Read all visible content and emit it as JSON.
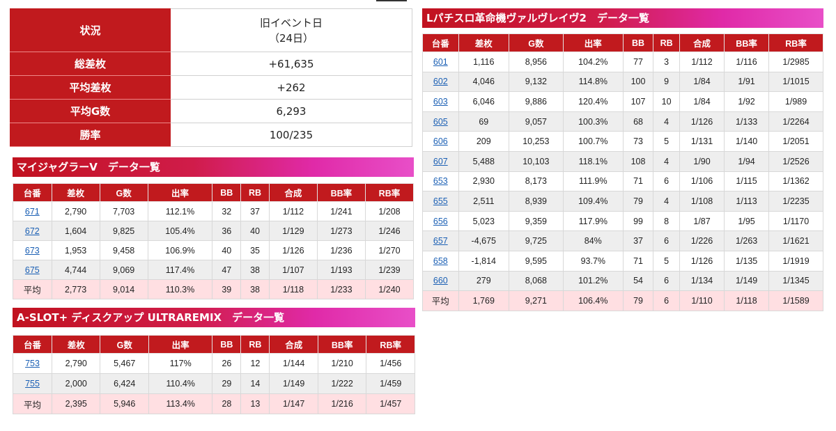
{
  "summary": {
    "rows": [
      {
        "label": "状況",
        "value_lines": [
          "旧イベント日",
          "（24日）"
        ]
      },
      {
        "label": "総差枚",
        "value_lines": [
          "+61,635"
        ]
      },
      {
        "label": "平均差枚",
        "value_lines": [
          "+262"
        ]
      },
      {
        "label": "平均G数",
        "value_lines": [
          "6,293"
        ]
      },
      {
        "label": "勝率",
        "value_lines": [
          "100/235"
        ]
      }
    ]
  },
  "columns": [
    "台番",
    "差枚",
    "G数",
    "出率",
    "BB",
    "RB",
    "合成",
    "BB率",
    "RB率"
  ],
  "sections": {
    "myjuggler": {
      "title": "マイジャグラーV　データ一覧",
      "rows": [
        [
          "671",
          "2,790",
          "7,703",
          "112.1%",
          "32",
          "37",
          "1/112",
          "1/241",
          "1/208"
        ],
        [
          "672",
          "1,604",
          "9,825",
          "105.4%",
          "36",
          "40",
          "1/129",
          "1/273",
          "1/246"
        ],
        [
          "673",
          "1,953",
          "9,458",
          "106.9%",
          "40",
          "35",
          "1/126",
          "1/236",
          "1/270"
        ],
        [
          "675",
          "4,744",
          "9,069",
          "117.4%",
          "47",
          "38",
          "1/107",
          "1/193",
          "1/239"
        ]
      ],
      "avg": [
        "平均",
        "2,773",
        "9,014",
        "110.3%",
        "39",
        "38",
        "1/118",
        "1/233",
        "1/240"
      ]
    },
    "discup": {
      "title": "A-SLOT+ ディスクアップ ULTRAREMIX　データ一覧",
      "rows": [
        [
          "753",
          "2,790",
          "5,467",
          "117%",
          "26",
          "12",
          "1/144",
          "1/210",
          "1/456"
        ],
        [
          "755",
          "2,000",
          "6,424",
          "110.4%",
          "29",
          "14",
          "1/149",
          "1/222",
          "1/459"
        ]
      ],
      "avg": [
        "平均",
        "2,395",
        "5,946",
        "113.4%",
        "28",
        "13",
        "1/147",
        "1/216",
        "1/457"
      ]
    },
    "valvrave": {
      "title": "Lパチスロ革命機ヴァルヴレイヴ2　データ一覧",
      "rows": [
        [
          "601",
          "1,116",
          "8,956",
          "104.2%",
          "77",
          "3",
          "1/112",
          "1/116",
          "1/2985"
        ],
        [
          "602",
          "4,046",
          "9,132",
          "114.8%",
          "100",
          "9",
          "1/84",
          "1/91",
          "1/1015"
        ],
        [
          "603",
          "6,046",
          "9,886",
          "120.4%",
          "107",
          "10",
          "1/84",
          "1/92",
          "1/989"
        ],
        [
          "605",
          "69",
          "9,057",
          "100.3%",
          "68",
          "4",
          "1/126",
          "1/133",
          "1/2264"
        ],
        [
          "606",
          "209",
          "10,253",
          "100.7%",
          "73",
          "5",
          "1/131",
          "1/140",
          "1/2051"
        ],
        [
          "607",
          "5,488",
          "10,103",
          "118.1%",
          "108",
          "4",
          "1/90",
          "1/94",
          "1/2526"
        ],
        [
          "653",
          "2,930",
          "8,173",
          "111.9%",
          "71",
          "6",
          "1/106",
          "1/115",
          "1/1362"
        ],
        [
          "655",
          "2,511",
          "8,939",
          "109.4%",
          "79",
          "4",
          "1/108",
          "1/113",
          "1/2235"
        ],
        [
          "656",
          "5,023",
          "9,359",
          "117.9%",
          "99",
          "8",
          "1/87",
          "1/95",
          "1/1170"
        ],
        [
          "657",
          "-4,675",
          "9,725",
          "84%",
          "37",
          "6",
          "1/226",
          "1/263",
          "1/1621"
        ],
        [
          "658",
          "-1,814",
          "9,595",
          "93.7%",
          "71",
          "5",
          "1/126",
          "1/135",
          "1/1919"
        ],
        [
          "660",
          "279",
          "8,068",
          "101.2%",
          "54",
          "6",
          "1/134",
          "1/149",
          "1/1345"
        ]
      ],
      "avg": [
        "平均",
        "1,769",
        "9,271",
        "106.4%",
        "79",
        "6",
        "1/110",
        "1/118",
        "1/1589"
      ]
    }
  },
  "colors": {
    "header_red": "#c11a1e",
    "link_blue": "#1a5fb4",
    "avg_row_pink": "#ffdfe2",
    "alt_row_gray": "#eeeeee"
  }
}
